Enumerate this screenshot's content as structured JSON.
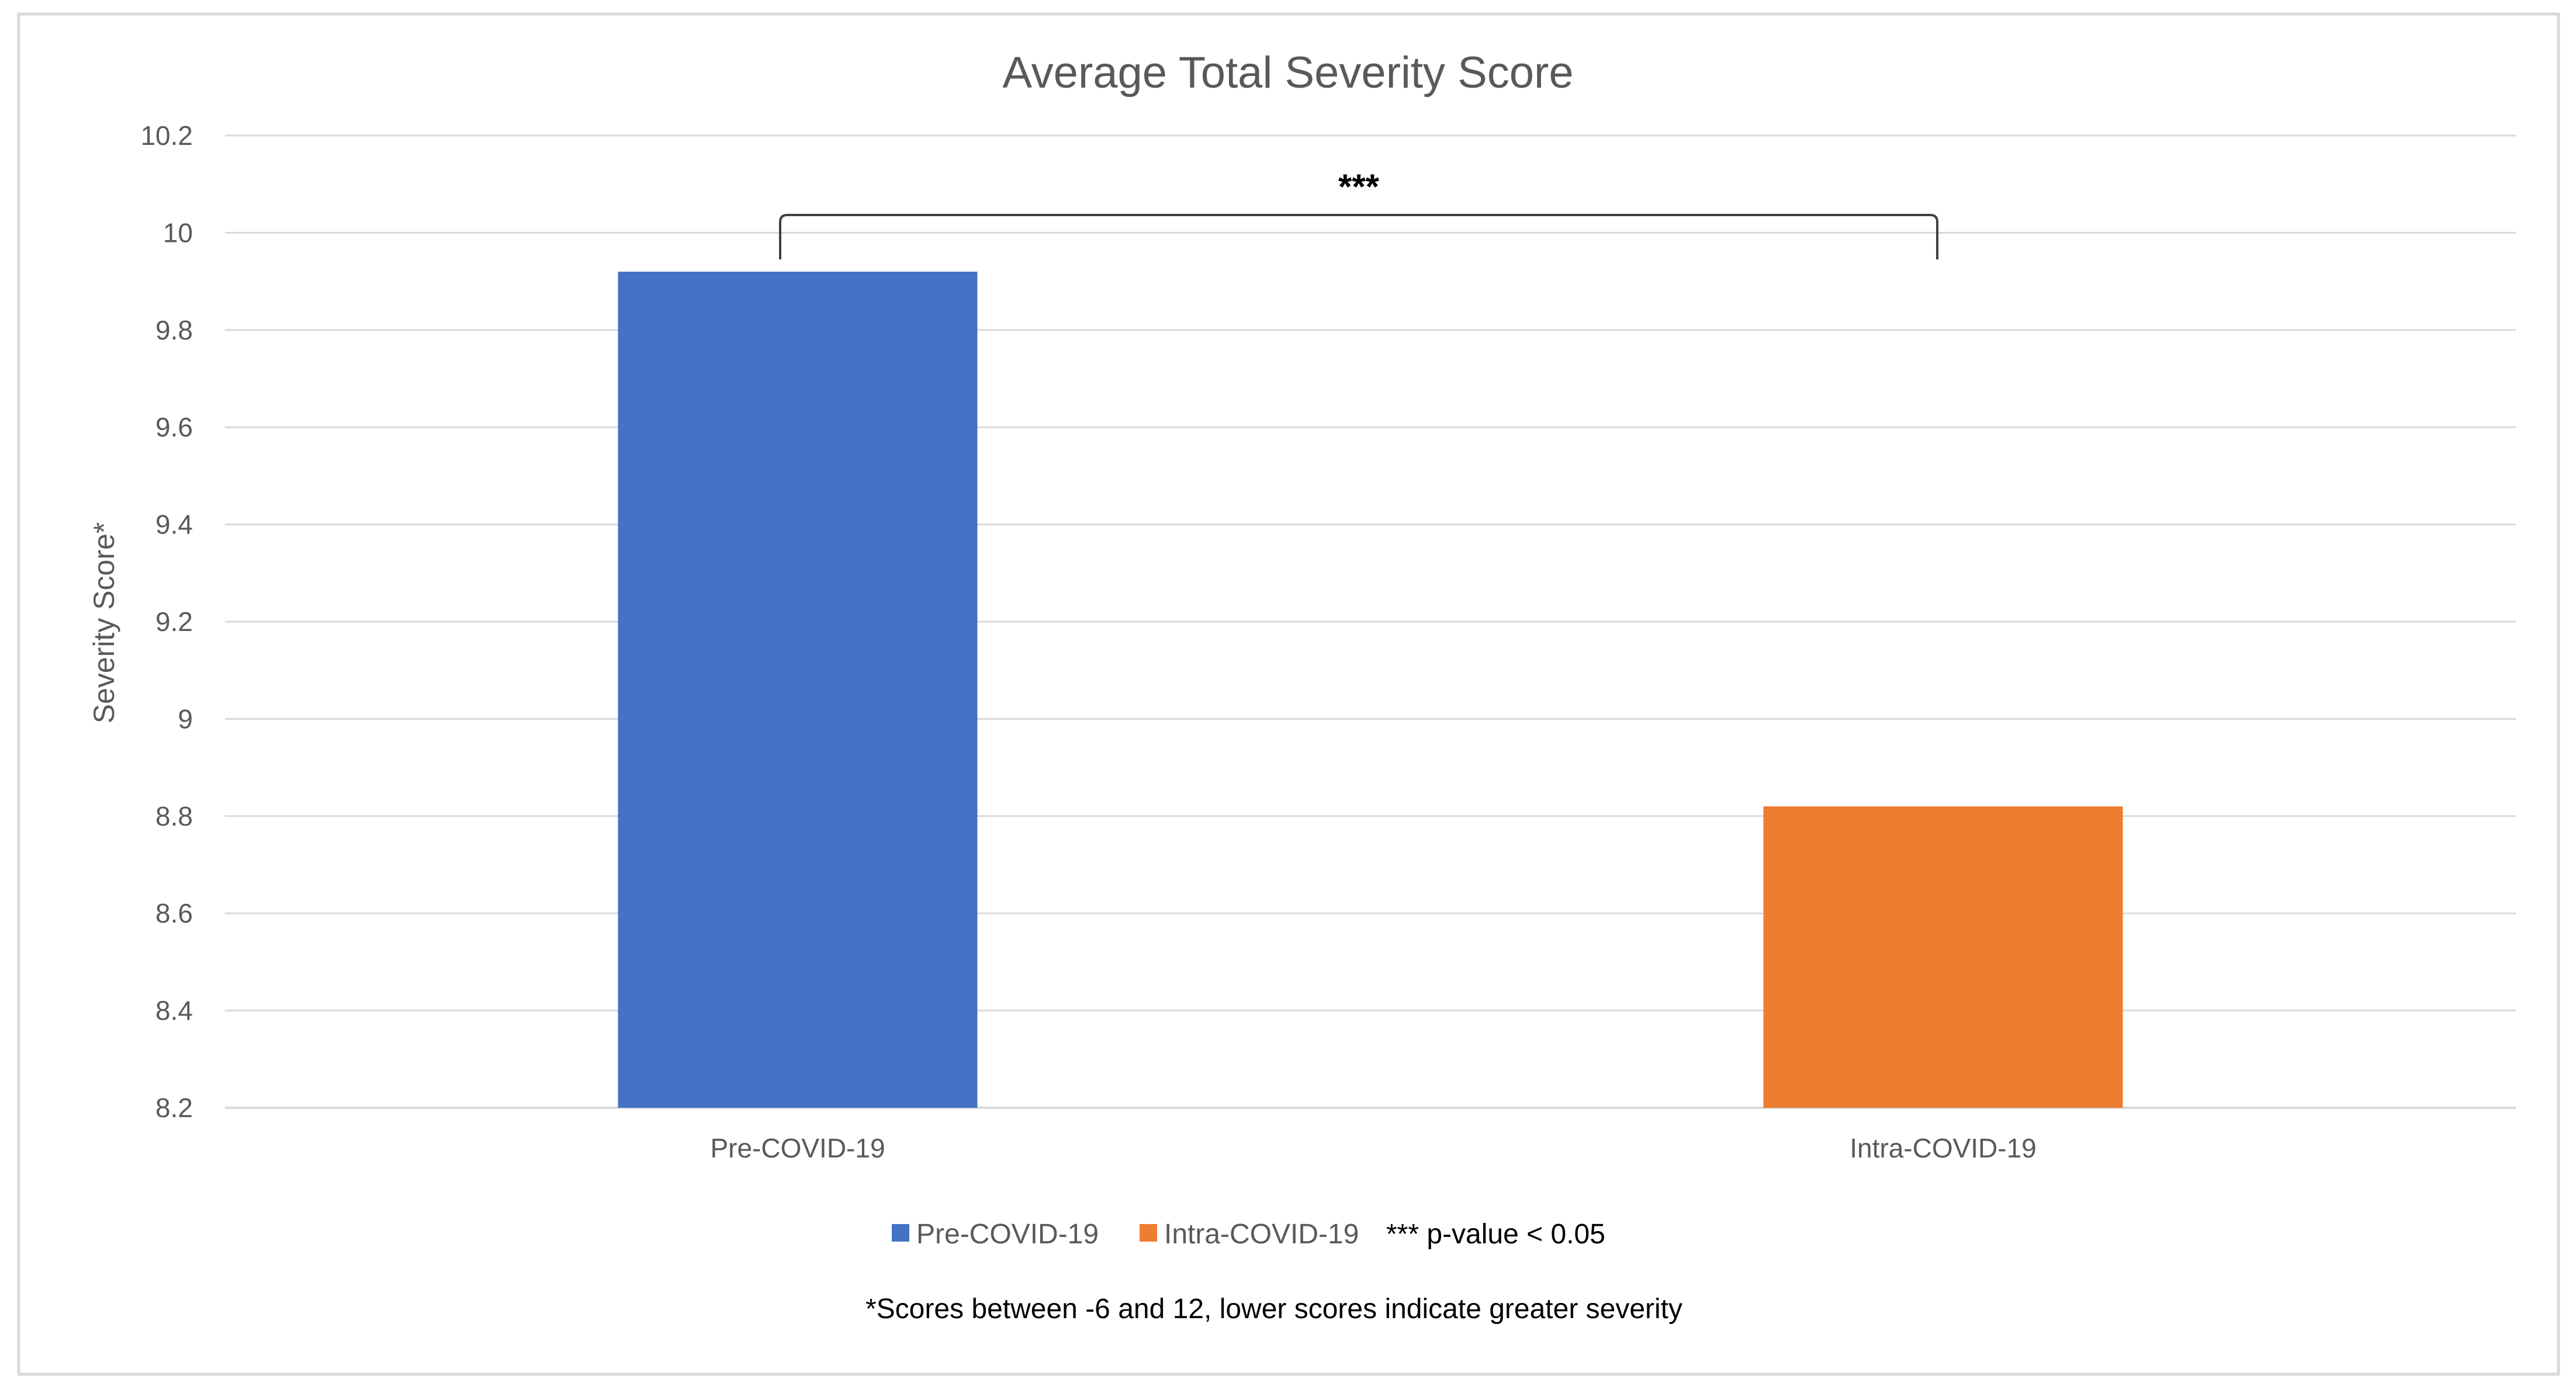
{
  "chart_data": {
    "type": "bar",
    "title": "Average Total Severity Score",
    "xlabel": "",
    "ylabel": "Severity Score*",
    "ylim": [
      8.2,
      10.2
    ],
    "yticks": [
      "10.2",
      "10",
      "9.8",
      "9.6",
      "9.4",
      "9.2",
      "9",
      "8.8",
      "8.6",
      "8.4",
      "8.2"
    ],
    "grid": true,
    "categories": [
      "Pre-COVID-19",
      "Intra-COVID-19"
    ],
    "values": [
      9.92,
      8.82
    ],
    "colors": [
      "#4472c4",
      "#ed7d31"
    ],
    "significance": {
      "label": "***",
      "between": [
        "Pre-COVID-19",
        "Intra-COVID-19"
      ]
    },
    "legend": {
      "placement": "bottom",
      "entries": [
        "Pre-COVID-19",
        "Intra-COVID-19"
      ],
      "note": "*** p-value < 0.05"
    },
    "footnote": "*Scores between -6 and 12, lower scores indicate greater severity"
  }
}
